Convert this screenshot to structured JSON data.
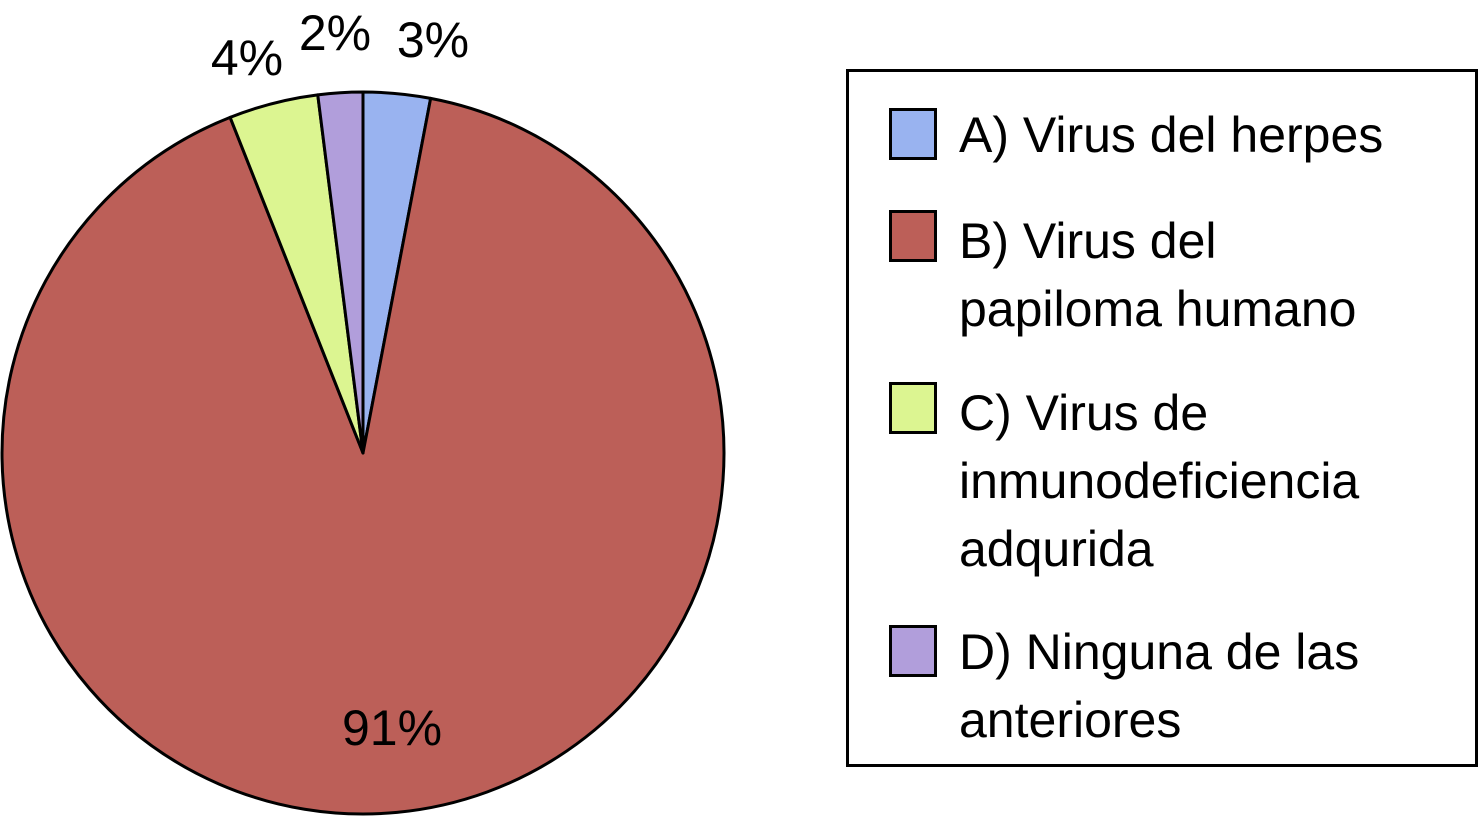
{
  "chart_data": {
    "type": "pie",
    "title": "",
    "start": "12 o'clock, clockwise",
    "slices": [
      {
        "key": "A",
        "label": "A) Virus del herpes",
        "value": 3,
        "display": "3%",
        "color": "#99b3f0"
      },
      {
        "key": "B",
        "label": "B) Virus del papiloma humano",
        "value": 91,
        "display": "91%",
        "color": "#bc5f58"
      },
      {
        "key": "C",
        "label": "C) Virus de inmunodeficiencia adqurida",
        "value": 4,
        "display": "4%",
        "color": "#dcf591"
      },
      {
        "key": "D",
        "label": "D) Ninguna de las anteriores",
        "value": 2,
        "display": "2%",
        "color": "#b19edb"
      }
    ],
    "legend_placement": "right"
  },
  "legend": {
    "items": [
      {
        "key": "A",
        "text": "A) Virus del herpes",
        "color": "#99b3f0"
      },
      {
        "key": "B",
        "text": "B) Virus del\npapiloma humano",
        "color": "#bc5f58"
      },
      {
        "key": "C",
        "text": "C) Virus de\ninmunodeficiencia\nadqurida",
        "color": "#dcf591"
      },
      {
        "key": "D",
        "text": "D) Ninguna de las\nanteriores",
        "color": "#b19edb"
      }
    ]
  }
}
